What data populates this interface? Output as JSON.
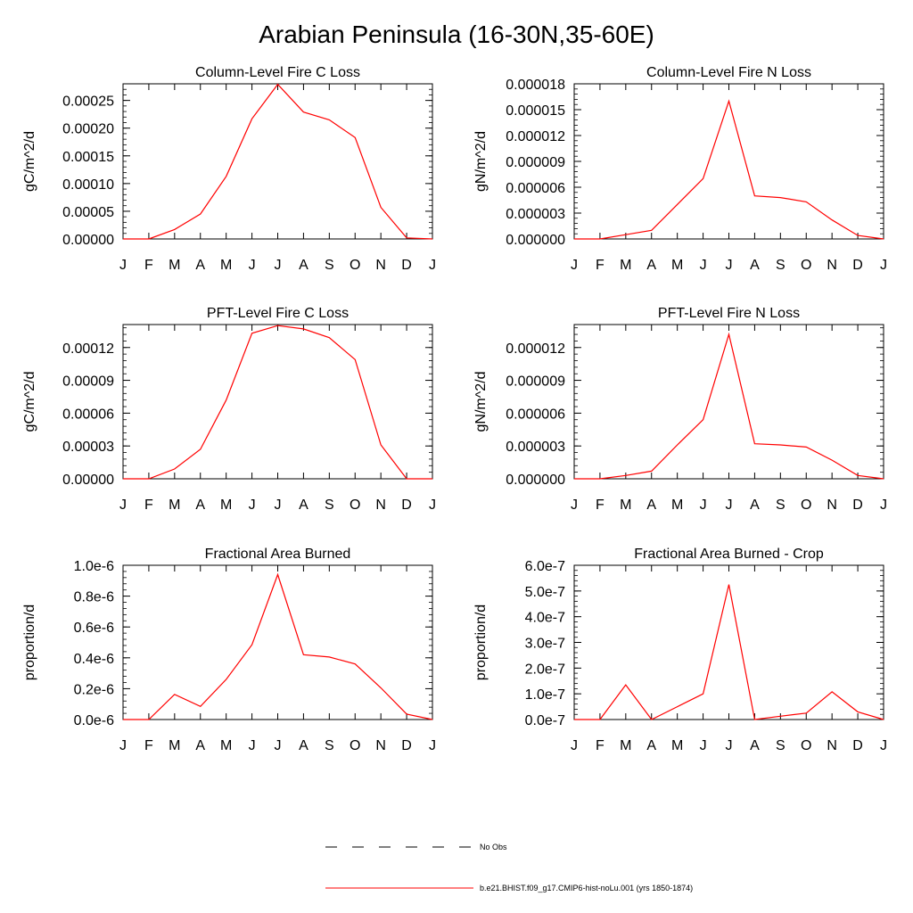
{
  "title": "Arabian Peninsula (16-30N,35-60E)",
  "chart_data": [
    {
      "type": "line",
      "title": "Column-Level Fire C Loss",
      "xlabel": "",
      "ylabel": "gC/m^2/d",
      "categories": [
        "J",
        "F",
        "M",
        "A",
        "M",
        "J",
        "J",
        "A",
        "S",
        "O",
        "N",
        "D",
        "J"
      ],
      "ylim": [
        0,
        0.00028
      ],
      "yticks": [
        "0.00000",
        "0.00005",
        "0.00010",
        "0.00015",
        "0.00020",
        "0.00025"
      ],
      "ytick_values": [
        0,
        5e-05,
        0.0001,
        0.00015,
        0.0002,
        0.00025
      ],
      "series": [
        {
          "name": "b.e21.BHIST.f09_g17.CMIP6-hist-noLu.001 (yrs 1850-1874)",
          "color": "#ff0000",
          "values": [
            0,
            0,
            1.7e-05,
            4.5e-05,
            0.000113,
            0.000217,
            0.000279,
            0.000229,
            0.000215,
            0.000183,
            5.7e-05,
            2e-06,
            0
          ]
        }
      ]
    },
    {
      "type": "line",
      "title": "Column-Level Fire N Loss",
      "xlabel": "",
      "ylabel": "gN/m^2/d",
      "categories": [
        "J",
        "F",
        "M",
        "A",
        "M",
        "J",
        "J",
        "A",
        "S",
        "O",
        "N",
        "D",
        "J"
      ],
      "ylim": [
        0,
        1.8e-05
      ],
      "yticks": [
        "0.000000",
        "0.000003",
        "0.000006",
        "0.000009",
        "0.000012",
        "0.000015",
        "0.000018"
      ],
      "ytick_values": [
        0,
        3e-06,
        6e-06,
        9e-06,
        1.2e-05,
        1.5e-05,
        1.8e-05
      ],
      "series": [
        {
          "name": "b.e21.BHIST.f09_g17.CMIP6-hist-noLu.001 (yrs 1850-1874)",
          "color": "#ff0000",
          "values": [
            0,
            0,
            5e-07,
            1e-06,
            4e-06,
            7e-06,
            1.6e-05,
            5e-06,
            4.8e-06,
            4.3e-06,
            2.2e-06,
            4e-07,
            0
          ]
        }
      ]
    },
    {
      "type": "line",
      "title": "PFT-Level Fire C Loss",
      "xlabel": "",
      "ylabel": "gC/m^2/d",
      "categories": [
        "J",
        "F",
        "M",
        "A",
        "M",
        "J",
        "J",
        "A",
        "S",
        "O",
        "N",
        "D",
        "J"
      ],
      "ylim": [
        0,
        0.000141
      ],
      "yticks": [
        "0.00000",
        "0.00003",
        "0.00006",
        "0.00009",
        "0.00012"
      ],
      "ytick_values": [
        0,
        3e-05,
        6e-05,
        9e-05,
        0.00012
      ],
      "series": [
        {
          "name": "b.e21.BHIST.f09_g17.CMIP6-hist-noLu.001 (yrs 1850-1874)",
          "color": "#ff0000",
          "values": [
            0,
            0,
            9e-06,
            2.7e-05,
            7.2e-05,
            0.000133,
            0.00014,
            0.000137,
            0.000129,
            0.000109,
            3.1e-05,
            0,
            0
          ]
        }
      ]
    },
    {
      "type": "line",
      "title": "PFT-Level Fire N Loss",
      "xlabel": "",
      "ylabel": "gN/m^2/d",
      "categories": [
        "J",
        "F",
        "M",
        "A",
        "M",
        "J",
        "J",
        "A",
        "S",
        "O",
        "N",
        "D",
        "J"
      ],
      "ylim": [
        0,
        1.41e-05
      ],
      "yticks": [
        "0.000000",
        "0.000003",
        "0.000006",
        "0.000009",
        "0.000012"
      ],
      "ytick_values": [
        0,
        3e-06,
        6e-06,
        9e-06,
        1.2e-05
      ],
      "series": [
        {
          "name": "b.e21.BHIST.f09_g17.CMIP6-hist-noLu.001 (yrs 1850-1874)",
          "color": "#ff0000",
          "values": [
            0,
            0,
            3e-07,
            7e-07,
            3.1e-06,
            5.4e-06,
            1.32e-05,
            3.2e-06,
            3.1e-06,
            2.9e-06,
            1.7e-06,
            3e-07,
            0
          ]
        }
      ]
    },
    {
      "type": "line",
      "title": "Fractional Area Burned",
      "xlabel": "",
      "ylabel": "proportion/d",
      "categories": [
        "J",
        "F",
        "M",
        "A",
        "M",
        "J",
        "J",
        "A",
        "S",
        "O",
        "N",
        "D",
        "J"
      ],
      "ylim": [
        0,
        1e-06
      ],
      "yticks": [
        "0.0e-6",
        "0.2e-6",
        "0.4e-6",
        "0.6e-6",
        "0.8e-6",
        "1.0e-6"
      ],
      "ytick_values": [
        0,
        2e-07,
        4e-07,
        6e-07,
        8e-07,
        1e-06
      ],
      "series": [
        {
          "name": "b.e21.BHIST.f09_g17.CMIP6-hist-noLu.001 (yrs 1850-1874)",
          "color": "#ff0000",
          "values": [
            0,
            0,
            1.63e-07,
            8.5e-08,
            2.6e-07,
            4.85e-07,
            9.4e-07,
            4.2e-07,
            4.05e-07,
            3.6e-07,
            2.05e-07,
            3.5e-08,
            0
          ]
        }
      ]
    },
    {
      "type": "line",
      "title": "Fractional Area Burned - Crop",
      "xlabel": "",
      "ylabel": "proportion/d",
      "categories": [
        "J",
        "F",
        "M",
        "A",
        "M",
        "J",
        "J",
        "A",
        "S",
        "O",
        "N",
        "D",
        "J"
      ],
      "ylim": [
        0,
        6e-07
      ],
      "yticks": [
        "0.0e-7",
        "1.0e-7",
        "2.0e-7",
        "3.0e-7",
        "4.0e-7",
        "5.0e-7",
        "6.0e-7"
      ],
      "ytick_values": [
        0,
        1e-07,
        2e-07,
        3e-07,
        4e-07,
        5e-07,
        6e-07
      ],
      "series": [
        {
          "name": "b.e21.BHIST.f09_g17.CMIP6-hist-noLu.001 (yrs 1850-1874)",
          "color": "#ff0000",
          "values": [
            0,
            0,
            1.35e-07,
            0,
            5e-08,
            1e-07,
            5.25e-07,
            0,
            1.3e-08,
            2.5e-08,
            1.08e-07,
            3e-08,
            0
          ]
        }
      ]
    }
  ],
  "legend": {
    "items": [
      {
        "label": "No Obs",
        "color": "#000000",
        "style": "dashed"
      },
      {
        "label": "b.e21.BHIST.f09_g17.CMIP6-hist-noLu.001 (yrs 1850-1874)",
        "color": "#ff0000",
        "style": "solid"
      }
    ]
  }
}
